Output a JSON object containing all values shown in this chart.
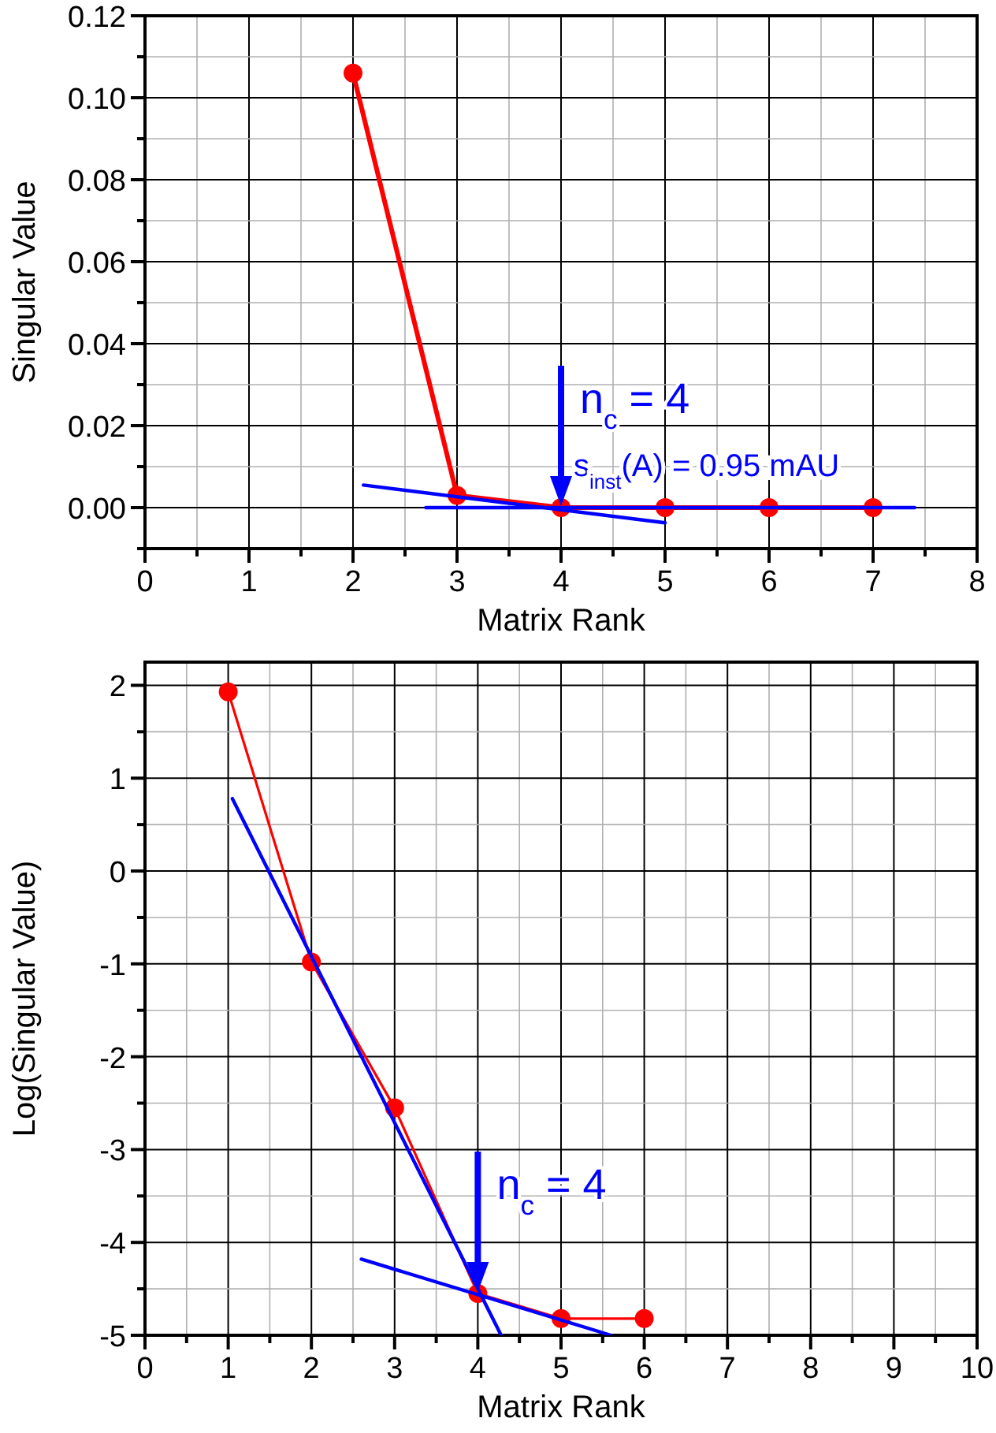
{
  "chart_data": [
    {
      "type": "line",
      "xlabel": "Matrix Rank",
      "ylabel": "Singular Value",
      "xlim": [
        0,
        8
      ],
      "ylim": [
        -0.01,
        0.12
      ],
      "xticks": [
        0,
        {
          "value": 0.5,
          "label": null
        },
        1,
        {
          "value": 1.5,
          "label": null
        },
        2,
        {
          "value": 2.5,
          "label": null
        },
        3,
        {
          "value": 3.5,
          "label": null
        },
        4,
        {
          "value": 4.5,
          "label": null
        },
        5,
        {
          "value": 5.5,
          "label": null
        },
        6,
        {
          "value": 6.5,
          "label": null
        },
        7,
        {
          "value": 7.5,
          "label": null
        },
        8
      ],
      "yticks": [
        {
          "value": -0.01,
          "label": null
        },
        {
          "value": 0,
          "label": "0.00"
        },
        {
          "value": 0.01,
          "label": null
        },
        {
          "value": 0.02,
          "label": "0.02"
        },
        {
          "value": 0.03,
          "label": null
        },
        {
          "value": 0.04,
          "label": "0.04"
        },
        {
          "value": 0.05,
          "label": null
        },
        {
          "value": 0.06,
          "label": "0.06"
        },
        {
          "value": 0.07,
          "label": null
        },
        {
          "value": 0.08,
          "label": "0.08"
        },
        {
          "value": 0.09,
          "label": null
        },
        {
          "value": 0.1,
          "label": "0.10"
        },
        {
          "value": 0.11,
          "label": null
        },
        {
          "value": 0.12,
          "label": "0.12"
        }
      ],
      "grid": true,
      "series": [
        {
          "color": "#ff0000",
          "x": [
            2,
            3,
            4,
            5,
            6,
            7
          ],
          "values": [
            0.106,
            0.003,
            0.0,
            0.0,
            0.0,
            0.0
          ],
          "marker": "circle"
        },
        {
          "color": "#0000ff",
          "x": [
            2.1,
            5
          ],
          "values": [
            0.0055,
            -0.0037
          ],
          "marker": "none"
        },
        {
          "color": "#0000ff",
          "x": [
            2.7,
            7.4
          ],
          "values": [
            0,
            0
          ],
          "marker": "none"
        }
      ],
      "annotations": [
        {
          "text": "n$_{c}$ = 4",
          "x": 4,
          "y": 0
        },
        "s$_{inst}$(A) = 0.95 mAU"
      ]
    },
    {
      "type": "line",
      "xlabel": "Matrix Rank",
      "ylabel": "Log(Singular Value)",
      "xlim": [
        0,
        10
      ],
      "ylim": [
        -5,
        2.25
      ],
      "xticks": [
        0,
        {
          "value": 0.5,
          "label": null
        },
        1,
        {
          "value": 1.5,
          "label": null
        },
        2,
        {
          "value": 2.5,
          "label": null
        },
        3,
        {
          "value": 3.5,
          "label": null
        },
        4,
        {
          "value": 4.5,
          "label": null
        },
        5,
        {
          "value": 5.5,
          "label": null
        },
        6,
        {
          "value": 6.5,
          "label": null
        },
        7,
        {
          "value": 7.5,
          "label": null
        },
        8,
        {
          "value": 8.5,
          "label": null
        },
        9,
        {
          "value": 9.5,
          "label": null
        },
        10
      ],
      "yticks": [
        -5,
        {
          "value": -4.5,
          "label": null
        },
        -4,
        {
          "value": -3.5,
          "label": null
        },
        -3,
        {
          "value": -2.5,
          "label": null
        },
        -2,
        {
          "value": -1.5,
          "label": null
        },
        -1,
        {
          "value": -0.5,
          "label": null
        },
        0,
        {
          "value": 0.5,
          "label": null
        },
        1,
        {
          "value": 1.5,
          "label": null
        },
        2
      ],
      "grid": true,
      "series": [
        {
          "color": "#ff0000",
          "x": [
            1,
            2,
            3,
            4,
            5,
            6
          ],
          "values": [
            1.93,
            -0.98,
            -2.55,
            -4.55,
            -4.82,
            -4.82
          ],
          "marker": "circle"
        },
        {
          "color": "#0000ff",
          "x": [
            1.05,
            4.28
          ],
          "values": [
            0.78,
            -5
          ],
          "marker": "none"
        },
        {
          "color": "#0000ff",
          "x": [
            2.6,
            5.6
          ],
          "values": [
            -4.18,
            -5
          ],
          "marker": "none"
        }
      ],
      "annotations": [
        {
          "text": "n$_{c}$ = 4",
          "x": 4,
          "y": -4.55
        }
      ]
    }
  ]
}
